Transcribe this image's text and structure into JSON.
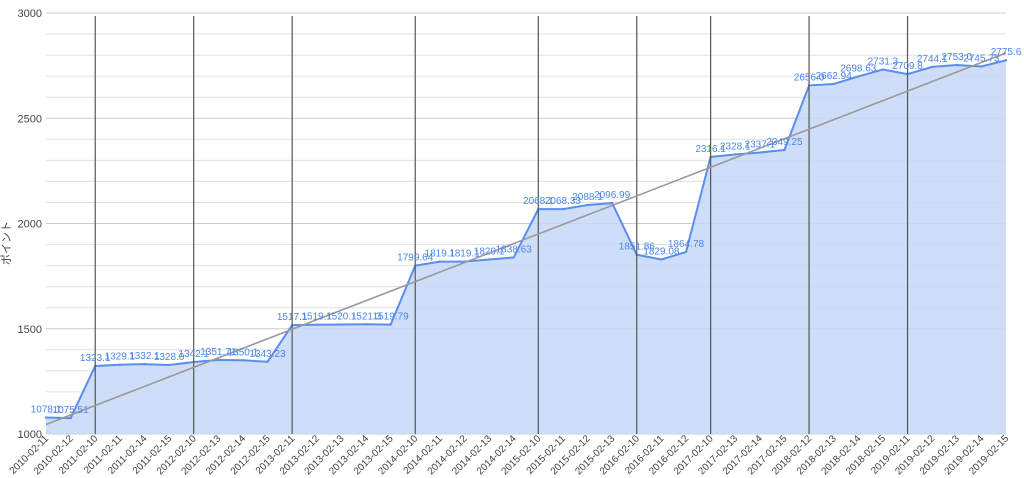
{
  "chart_data": {
    "type": "area",
    "ylabel": "ポイント",
    "ylim": [
      1000,
      3000
    ],
    "yticks": [
      "1000",
      "1500",
      "2000",
      "2500",
      "3000"
    ],
    "categories": [
      "2010-02-11",
      "2010-02-12",
      "2011-02-10",
      "2011-02-11",
      "2011-02-14",
      "2011-02-15",
      "2012-02-10",
      "2012-02-13",
      "2012-02-14",
      "2012-02-15",
      "2013-02-11",
      "2013-02-12",
      "2013-02-13",
      "2013-02-14",
      "2013-02-15",
      "2014-02-10",
      "2014-02-11",
      "2014-02-12",
      "2014-02-13",
      "2014-02-14",
      "2015-02-10",
      "2015-02-11",
      "2015-02-12",
      "2015-02-13",
      "2016-02-10",
      "2016-02-11",
      "2016-02-12",
      "2017-02-10",
      "2017-02-13",
      "2017-02-14",
      "2017-02-15",
      "2018-02-12",
      "2018-02-13",
      "2018-02-14",
      "2018-02-15",
      "2019-02-11",
      "2019-02-12",
      "2019-02-13",
      "2019-02-14",
      "2019-02-15"
    ],
    "values": [
      1078.1,
      1075.51,
      1323.1,
      1329.1,
      1332.1,
      1328.0,
      1342.1,
      1351.71,
      1350.1,
      1343.23,
      1517.1,
      1519.1,
      1520.1,
      1521.3,
      1519.79,
      1799.64,
      1819.1,
      1819.1,
      1829.1,
      1838.63,
      2068.1,
      2068.33,
      2088.1,
      2096.99,
      1851.86,
      1829.08,
      1864.78,
      2316.1,
      2328.1,
      2337.1,
      2349.25,
      2656.0,
      2662.94,
      2698.63,
      2731.3,
      2709.8,
      2744.1,
      2753.0,
      2745.73,
      2775.6
    ],
    "data_labels": [
      "1078.1",
      "1075.51",
      "1323.1",
      "1329.1",
      "1332.1",
      "1328.0",
      "1342.1",
      "1351.71",
      "1350.1",
      "1343.23",
      "1517.1",
      "1519.1",
      "1520.1",
      "1521.3",
      "1519.79",
      "1799.64",
      "1819.1",
      "1819.1",
      "1829.1",
      "1838.63",
      "2068.1",
      "2068.33",
      "2088.1",
      "2096.99",
      "1851.86",
      "1829.08",
      "1864.78",
      "2316.1",
      "2328.1",
      "2337.1",
      "2349.25",
      "2656.0",
      "2662.94",
      "2698.63",
      "2731.3",
      "2709.8",
      "2744.1",
      "2753.0",
      "2745.73",
      "2775.6"
    ],
    "year_boundary_indices": [
      2,
      6,
      10,
      15,
      20,
      24,
      27,
      31,
      35
    ],
    "trendline": {
      "start": 1045,
      "end": 2810
    },
    "colors": {
      "line": "#5b8def",
      "fill": "#c5d8f7",
      "trend": "#999999",
      "label": "#4a86e8",
      "grid": "#e0e0e0",
      "year_line": "#555555"
    },
    "grid": true,
    "legend": "none"
  }
}
